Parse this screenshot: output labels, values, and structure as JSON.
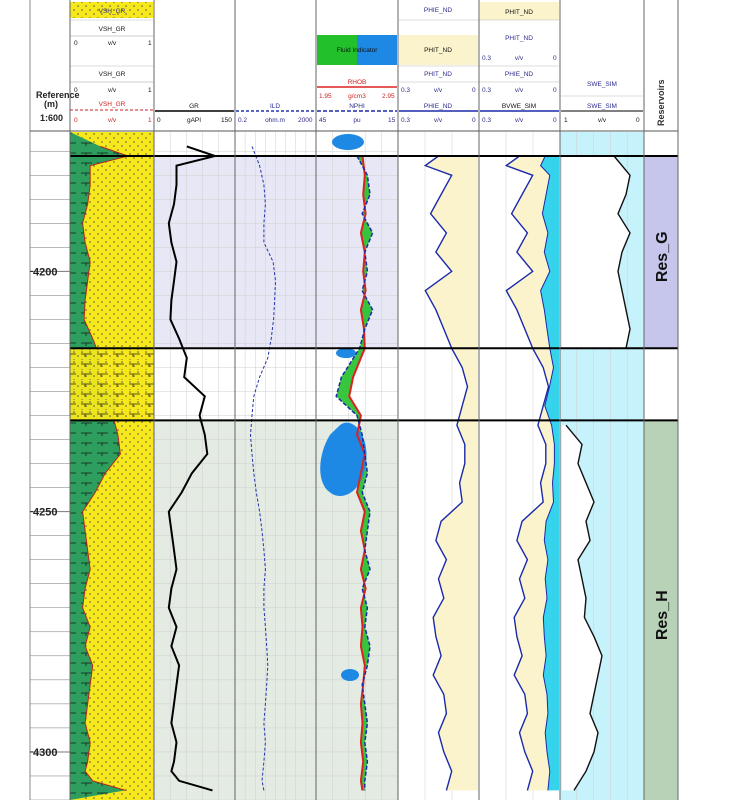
{
  "reference": {
    "label": "Reference",
    "unit": "(m)",
    "scale": "1:600"
  },
  "depth_axis": {
    "ticks": [
      "4200",
      "4250",
      "4300"
    ]
  },
  "tracks": {
    "lithology": {
      "headers": [
        {
          "text": "VSH_GR",
          "range_min": "",
          "range_max": "",
          "unit": ""
        },
        {
          "text": "VSH_GR",
          "range_min": "0",
          "range_max": "1",
          "unit": "v/v"
        },
        {
          "text": "VSH_GR",
          "range_min": "0",
          "range_max": "1",
          "unit": "v/v"
        },
        {
          "text": "VSH_GR",
          "range_min": "0",
          "range_max": "1",
          "unit": "v/v"
        }
      ]
    },
    "gr": {
      "curve": "GR",
      "range_min": "0",
      "range_max": "150",
      "unit": "gAPI"
    },
    "ild": {
      "curve": "ILD",
      "range_min": "0.2",
      "range_max": "2000",
      "unit": "ohm.m"
    },
    "fluid": {
      "indicator": "Fluid Indicator",
      "rhob": {
        "curve": "RHOB",
        "range_min": "1.95",
        "range_max": "2.95",
        "unit": "g/cm3"
      },
      "nphi": {
        "curve": "NPHI",
        "range_min": "45",
        "range_max": "15",
        "unit": "pu"
      }
    },
    "phie": {
      "headers": [
        {
          "text": "PHIE_ND",
          "range_min": "",
          "range_max": "",
          "unit": ""
        },
        {
          "text": "PHIT_ND",
          "range_min": "",
          "range_max": "",
          "unit": ""
        },
        {
          "text": "PHIT_ND",
          "range_min": "0.3",
          "range_max": "0",
          "unit": "v/v"
        },
        {
          "text": "PHIE_ND",
          "range_min": "0.3",
          "range_max": "0",
          "unit": "v/v"
        }
      ]
    },
    "phit": {
      "headers": [
        {
          "text": "PHIT_ND",
          "range_min": "",
          "range_max": "",
          "unit": ""
        },
        {
          "text": "PHIT_ND",
          "range_min": "0.3",
          "range_max": "0",
          "unit": "v/v"
        },
        {
          "text": "PHIE_ND",
          "range_min": "0.3",
          "range_max": "0",
          "unit": "v/v"
        },
        {
          "text": "BVWE_SIM",
          "range_min": "0.3",
          "range_max": "0",
          "unit": "v/v"
        }
      ]
    },
    "swe": {
      "headers": [
        {
          "text": "SWE_SIM",
          "range_min": "",
          "range_max": "",
          "unit": ""
        },
        {
          "text": "SWE_SIM",
          "range_min": "1",
          "range_max": "0",
          "unit": "v/v"
        }
      ]
    },
    "reservoirs": {
      "header": "Reservoirs"
    }
  },
  "colors": {
    "shale": "#2e9e5e",
    "sand": "#f6e81a",
    "gr_curve": "#000000",
    "ild_curve": "#2233aa",
    "gas_blue": "#1e88e5",
    "green_fill": "#22c02a",
    "rhob_red": "#dd2222",
    "porosity_fill": "#fbf3cc",
    "porosity_line": "#1b2aa8",
    "bvw_cyan": "#36d4ec",
    "swe_bg": "#c6f2fb",
    "res_g": "#c6c6ec",
    "res_h": "#b8d2b8",
    "zone_blue_bg": "#e7e7f6",
    "zone_green_bg": "#e3ebe3"
  },
  "chart_data": {
    "type": "line",
    "title": "",
    "xlabel": "",
    "ylabel": "Reference (m)",
    "ylim": [
      4310,
      4171
    ],
    "depth_ticks": [
      4200,
      4250,
      4300
    ],
    "zones": [
      {
        "name": "Res_G",
        "top": 4176,
        "base": 4216
      },
      {
        "name": "Res_H",
        "top": 4231,
        "base": 4310
      }
    ],
    "series": [
      {
        "name": "GR",
        "unit": "gAPI",
        "range": [
          0,
          150
        ],
        "depth": [
          4174,
          4176,
          4178,
          4182,
          4186,
          4190,
          4194,
          4198,
          4202,
          4206,
          4210,
          4214,
          4218,
          4222,
          4226,
          4230,
          4234,
          4238,
          4242,
          4246,
          4250,
          4254,
          4258,
          4262,
          4266,
          4270,
          4274,
          4278,
          4282,
          4286,
          4290,
          4294,
          4298,
          4302,
          4304,
          4306,
          4308
        ],
        "values": [
          60,
          115,
          40,
          40,
          35,
          25,
          30,
          40,
          35,
          30,
          28,
          45,
          60,
          55,
          95,
          85,
          95,
          100,
          70,
          50,
          25,
          30,
          35,
          40,
          30,
          25,
          40,
          30,
          45,
          40,
          35,
          30,
          40,
          35,
          30,
          45,
          110
        ]
      },
      {
        "name": "ILD",
        "unit": "ohm.m",
        "range": [
          0.2,
          2000
        ],
        "depth": [
          4174,
          4178,
          4182,
          4186,
          4190,
          4194,
          4198,
          4202,
          4206,
          4210,
          4214,
          4218,
          4222,
          4226,
          4230,
          4234,
          4238,
          4242,
          4246,
          4250,
          4254,
          4258,
          4262,
          4266,
          4270,
          4274,
          4278,
          4282,
          4286,
          4290,
          4294,
          4298,
          4302,
          4306,
          4308
        ],
        "values": [
          1.2,
          3,
          5,
          6,
          5,
          5,
          15,
          20,
          18,
          16,
          12,
          8,
          3,
          1.5,
          1.2,
          1,
          1.2,
          1.5,
          2,
          3,
          4,
          5,
          6,
          5,
          5,
          6,
          7,
          8,
          7,
          6,
          5,
          6,
          5,
          4,
          5
        ]
      },
      {
        "name": "RHOB",
        "unit": "g/cm3",
        "range": [
          1.95,
          2.95
        ],
        "depth": [
          4176,
          4180,
          4184,
          4188,
          4192,
          4196,
          4200,
          4204,
          4208,
          4212,
          4216,
          4222,
          4226,
          4230,
          4234,
          4238,
          4242,
          4246,
          4250,
          4254,
          4258,
          4262,
          4266,
          4270,
          4274,
          4278,
          4282,
          4286,
          4290,
          4294,
          4298,
          4302,
          4306,
          4308
        ],
        "values": [
          2.52,
          2.55,
          2.53,
          2.56,
          2.5,
          2.55,
          2.53,
          2.56,
          2.5,
          2.54,
          2.55,
          2.4,
          2.35,
          2.5,
          2.45,
          2.55,
          2.5,
          2.45,
          2.55,
          2.5,
          2.55,
          2.5,
          2.56,
          2.5,
          2.52,
          2.5,
          2.55,
          2.53,
          2.5,
          2.52,
          2.5,
          2.53,
          2.5,
          2.52
        ]
      },
      {
        "name": "NPHI",
        "unit": "pu",
        "range": [
          45,
          15
        ],
        "depth": [
          4176,
          4180,
          4184,
          4188,
          4192,
          4196,
          4200,
          4204,
          4208,
          4212,
          4216,
          4222,
          4226,
          4230,
          4234,
          4238,
          4242,
          4246,
          4250,
          4254,
          4258,
          4262,
          4266,
          4270,
          4274,
          4278,
          4282,
          4286,
          4290,
          4294,
          4298,
          4302,
          4306,
          4308
        ],
        "values": [
          30,
          26,
          25,
          28,
          24,
          27,
          26,
          28,
          24,
          27,
          29,
          36,
          38,
          30,
          28,
          27,
          26,
          28,
          25,
          26,
          27,
          25,
          28,
          26,
          27,
          25,
          26,
          28,
          27,
          26,
          27,
          26,
          27,
          27
        ]
      },
      {
        "name": "PHIE_ND",
        "unit": "v/v",
        "range": [
          0.3,
          0
        ],
        "depth": [
          4176,
          4178,
          4180,
          4184,
          4188,
          4192,
          4196,
          4200,
          4204,
          4208,
          4212,
          4216,
          4220,
          4224,
          4228,
          4232,
          4236,
          4240,
          4244,
          4248,
          4252,
          4256,
          4260,
          4264,
          4268,
          4272,
          4276,
          4280,
          4284,
          4288,
          4292,
          4296,
          4300,
          4304,
          4308
        ],
        "values": [
          0.15,
          0.2,
          0.1,
          0.14,
          0.18,
          0.12,
          0.16,
          0.1,
          0.2,
          0.16,
          0.13,
          0.1,
          0.06,
          0.04,
          0.06,
          0.08,
          0.05,
          0.05,
          0.07,
          0.06,
          0.14,
          0.16,
          0.12,
          0.15,
          0.13,
          0.17,
          0.16,
          0.14,
          0.17,
          0.13,
          0.12,
          0.15,
          0.13,
          0.1,
          0.12
        ]
      },
      {
        "name": "SWE_SIM",
        "unit": "v/v",
        "range": [
          1,
          0
        ],
        "depth": [
          4176,
          4180,
          4184,
          4188,
          4192,
          4196,
          4200,
          4204,
          4208,
          4212,
          4216,
          4232,
          4236,
          4240,
          4244,
          4248,
          4252,
          4256,
          4260,
          4264,
          4268,
          4272,
          4276,
          4280,
          4284,
          4288,
          4292,
          4296,
          4300,
          4304,
          4308
        ],
        "values": [
          0.35,
          0.15,
          0.2,
          0.3,
          0.15,
          0.25,
          0.3,
          0.25,
          0.2,
          0.15,
          0.2,
          0.95,
          0.75,
          0.8,
          0.7,
          0.6,
          0.7,
          0.65,
          0.8,
          0.75,
          0.7,
          0.72,
          0.6,
          0.5,
          0.55,
          0.6,
          0.65,
          0.55,
          0.6,
          0.7,
          0.85
        ]
      }
    ]
  }
}
